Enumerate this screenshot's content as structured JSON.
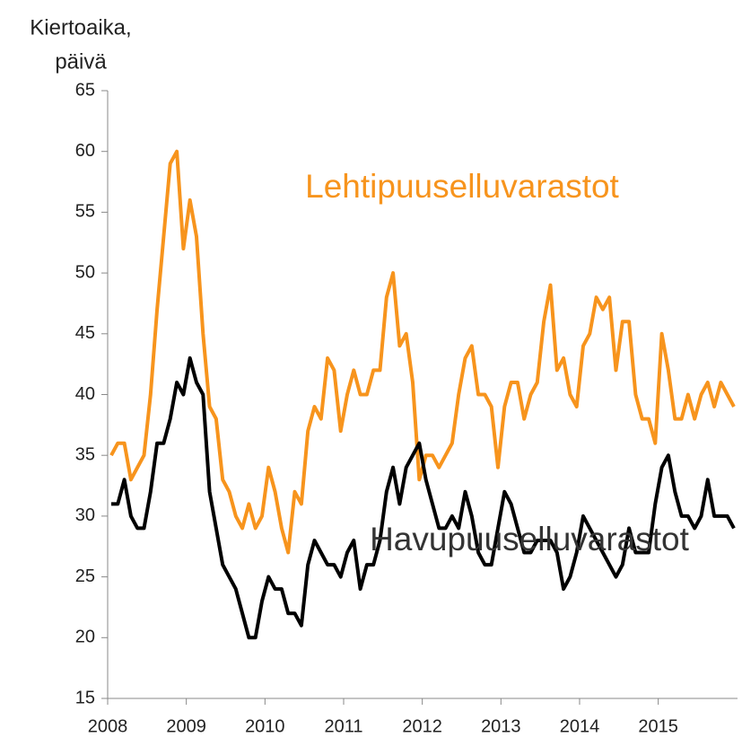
{
  "chart_data": {
    "type": "line",
    "y_label": [
      "Kiertoaika,",
      "päivä"
    ],
    "categories": [
      "2008",
      null,
      null,
      null,
      null,
      null,
      null,
      null,
      null,
      null,
      null,
      null,
      "2009",
      null,
      null,
      null,
      null,
      null,
      null,
      null,
      null,
      null,
      null,
      null,
      "2010",
      null,
      null,
      null,
      null,
      null,
      null,
      null,
      null,
      null,
      null,
      null,
      "2011",
      null,
      null,
      null,
      null,
      null,
      null,
      null,
      null,
      null,
      null,
      null,
      "2012",
      null,
      null,
      null,
      null,
      null,
      null,
      null,
      null,
      null,
      null,
      null,
      "2013",
      null,
      null,
      null,
      null,
      null,
      null,
      null,
      null,
      null,
      null,
      null,
      "2014",
      null,
      null,
      null,
      null,
      null,
      null,
      null,
      null,
      null,
      null,
      null,
      "2015",
      null,
      null,
      null,
      null,
      null,
      null,
      null,
      null,
      null,
      null,
      null
    ],
    "series": [
      {
        "name": "Lehtipuuselluvarastot",
        "color": "#f7941d",
        "values": [
          35,
          36,
          36,
          33,
          34,
          35,
          40,
          47,
          53,
          59,
          60,
          52,
          56,
          53,
          45,
          39,
          38,
          33,
          32,
          30,
          29,
          31,
          29,
          30,
          34,
          32,
          29,
          27,
          32,
          31,
          37,
          39,
          38,
          43,
          42,
          37,
          40,
          42,
          40,
          40,
          42,
          42,
          48,
          50,
          44,
          45,
          41,
          33,
          35,
          35,
          34,
          35,
          36,
          40,
          43,
          44,
          40,
          40,
          39,
          34,
          39,
          41,
          41,
          38,
          40,
          41,
          46,
          49,
          42,
          43,
          40,
          39,
          44,
          45,
          48,
          47,
          48,
          42,
          46,
          46,
          40,
          38,
          38,
          36,
          45,
          42,
          38,
          38,
          40,
          38,
          40,
          41,
          39,
          41,
          40,
          39
        ]
      },
      {
        "name": "Havupuuselluvarastot",
        "color": "#000000",
        "values": [
          31,
          31,
          33,
          30,
          29,
          29,
          32,
          36,
          36,
          38,
          41,
          40,
          43,
          41,
          40,
          32,
          29,
          26,
          25,
          24,
          22,
          20,
          20,
          23,
          25,
          24,
          24,
          22,
          22,
          21,
          26,
          28,
          27,
          26,
          26,
          25,
          27,
          28,
          24,
          26,
          26,
          28,
          32,
          34,
          31,
          34,
          35,
          36,
          33,
          31,
          29,
          29,
          30,
          29,
          32,
          30,
          27,
          26,
          26,
          29,
          32,
          31,
          29,
          27,
          27,
          28,
          28,
          28,
          27,
          24,
          25,
          27,
          30,
          29,
          28,
          27,
          26,
          25,
          26,
          29,
          27,
          27,
          27,
          31,
          34,
          35,
          32,
          30,
          30,
          29,
          30,
          33,
          30,
          30,
          30,
          29
        ]
      }
    ],
    "ylim": [
      15,
      65
    ],
    "yticks": [
      15,
      20,
      25,
      30,
      35,
      40,
      45,
      50,
      55,
      60,
      65
    ],
    "grid": false
  }
}
